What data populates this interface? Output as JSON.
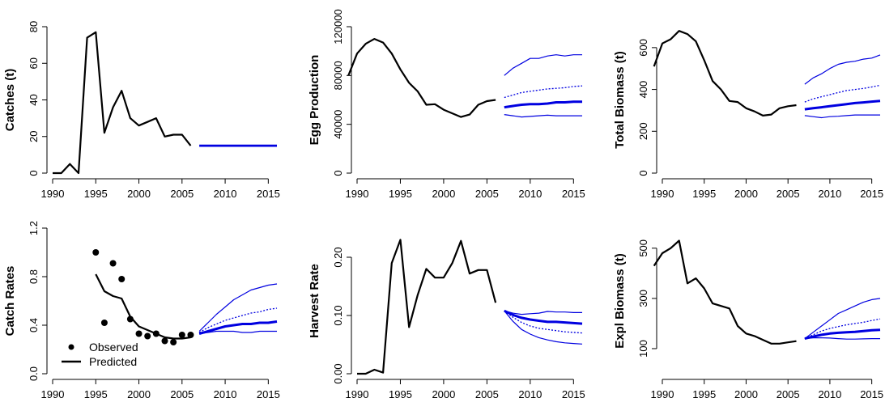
{
  "chart_data": [
    {
      "id": "catches",
      "type": "line",
      "ylabel": "Catches (t)",
      "xlim": [
        1990,
        2016
      ],
      "ylim": [
        0,
        80
      ],
      "xticks": [
        1990,
        1995,
        2000,
        2005,
        2010,
        2015
      ],
      "yticks": [
        0,
        20,
        40,
        60,
        80
      ],
      "series": [
        {
          "role": "historical",
          "color": "#000000",
          "x": [
            1990,
            1991,
            1992,
            1993,
            1994,
            1995,
            1996,
            1997,
            1998,
            1999,
            2000,
            2001,
            2002,
            2003,
            2004,
            2005,
            2006
          ],
          "y": [
            0,
            0,
            5,
            0,
            74,
            77,
            22,
            36,
            45,
            30,
            26,
            28,
            30,
            20,
            21,
            21,
            15
          ]
        },
        {
          "role": "projection",
          "color": "#0000e0",
          "x": [
            2007,
            2016
          ],
          "y": [
            15,
            15
          ]
        }
      ]
    },
    {
      "id": "egg",
      "type": "line",
      "ylabel": "Egg Production",
      "xlim": [
        1990,
        2016
      ],
      "ylim": [
        0,
        120000
      ],
      "xticks": [
        1990,
        1995,
        2000,
        2005,
        2010,
        2015
      ],
      "yticks": [
        0,
        40000,
        80000,
        120000
      ],
      "series": [
        {
          "role": "historical",
          "color": "#000000",
          "x": [
            1989,
            1990,
            1991,
            1992,
            1993,
            1994,
            1995,
            1996,
            1997,
            1998,
            1999,
            2000,
            2001,
            2002,
            2003,
            2004,
            2005,
            2006
          ],
          "y": [
            80000,
            98000,
            106000,
            110000,
            107000,
            98000,
            85000,
            74000,
            67000,
            56000,
            56500,
            52000,
            49000,
            46000,
            48000,
            56000,
            59000,
            60000
          ]
        },
        {
          "role": "upper",
          "color": "#0000e0",
          "x": [
            2007,
            2008,
            2009,
            2010,
            2011,
            2012,
            2013,
            2014,
            2015,
            2016
          ],
          "y": [
            80000,
            86000,
            90000,
            94000,
            94000,
            96000,
            97000,
            96000,
            97000,
            97000
          ]
        },
        {
          "role": "median",
          "color": "#0000e0",
          "dotted": true,
          "x": [
            2007,
            2008,
            2009,
            2010,
            2011,
            2012,
            2013,
            2014,
            2015,
            2016
          ],
          "y": [
            62000,
            64000,
            66000,
            67000,
            68000,
            69000,
            69500,
            70000,
            71000,
            71500
          ]
        },
        {
          "role": "mean",
          "color": "#0000e0",
          "thick": true,
          "x": [
            2007,
            2008,
            2009,
            2010,
            2011,
            2012,
            2013,
            2014,
            2015,
            2016
          ],
          "y": [
            54000,
            55000,
            56000,
            56500,
            56500,
            57000,
            58000,
            58000,
            58500,
            58500
          ]
        },
        {
          "role": "lower",
          "color": "#0000e0",
          "x": [
            2007,
            2008,
            2009,
            2010,
            2011,
            2012,
            2013,
            2014,
            2015,
            2016
          ],
          "y": [
            48000,
            47000,
            46000,
            46500,
            47000,
            47500,
            47000,
            47000,
            47000,
            47000
          ]
        }
      ]
    },
    {
      "id": "totbio",
      "type": "line",
      "ylabel": "Total Biomass (t)",
      "xlim": [
        1990,
        2016
      ],
      "ylim": [
        0,
        700
      ],
      "xticks": [
        1990,
        1995,
        2000,
        2005,
        2010,
        2015
      ],
      "yticks": [
        0,
        200,
        400,
        600
      ],
      "series": [
        {
          "role": "historical",
          "color": "#000000",
          "x": [
            1989,
            1990,
            1991,
            1992,
            1993,
            1994,
            1995,
            1996,
            1997,
            1998,
            1999,
            2000,
            2001,
            2002,
            2003,
            2004,
            2005,
            2006
          ],
          "y": [
            510,
            620,
            640,
            680,
            665,
            630,
            540,
            440,
            400,
            345,
            340,
            310,
            295,
            275,
            280,
            310,
            320,
            325
          ]
        },
        {
          "role": "upper",
          "color": "#0000e0",
          "x": [
            2007,
            2008,
            2009,
            2010,
            2011,
            2012,
            2013,
            2014,
            2015,
            2016
          ],
          "y": [
            425,
            455,
            475,
            500,
            520,
            530,
            535,
            545,
            550,
            565
          ]
        },
        {
          "role": "median",
          "color": "#0000e0",
          "dotted": true,
          "x": [
            2007,
            2008,
            2009,
            2010,
            2011,
            2012,
            2013,
            2014,
            2015,
            2016
          ],
          "y": [
            340,
            355,
            365,
            375,
            385,
            395,
            400,
            405,
            412,
            420
          ]
        },
        {
          "role": "mean",
          "color": "#0000e0",
          "thick": true,
          "x": [
            2007,
            2008,
            2009,
            2010,
            2011,
            2012,
            2013,
            2014,
            2015,
            2016
          ],
          "y": [
            305,
            310,
            315,
            320,
            325,
            330,
            335,
            338,
            342,
            345
          ]
        },
        {
          "role": "lower",
          "color": "#0000e0",
          "x": [
            2007,
            2008,
            2009,
            2010,
            2011,
            2012,
            2013,
            2014,
            2015,
            2016
          ],
          "y": [
            275,
            270,
            265,
            270,
            272,
            275,
            278,
            278,
            278,
            278
          ]
        }
      ]
    },
    {
      "id": "catchrates",
      "type": "line",
      "ylabel": "Catch Rates",
      "xlim": [
        1990,
        2016
      ],
      "ylim": [
        0,
        1.2
      ],
      "xticks": [
        1990,
        1995,
        2000,
        2005,
        2010,
        2015
      ],
      "yticks": [
        0.0,
        0.4,
        0.8,
        1.2
      ],
      "ytick_labels": [
        "0.0",
        "0.4",
        "0.8",
        "1.2"
      ],
      "legend": {
        "position": "bottom-left",
        "entries": [
          "Observed",
          "Predicted"
        ]
      },
      "observed": {
        "x": [
          1995,
          1996,
          1997,
          1998,
          1999,
          2000,
          2001,
          2002,
          2003,
          2004,
          2005,
          2006
        ],
        "y": [
          1.0,
          0.42,
          0.91,
          0.78,
          0.45,
          0.33,
          0.31,
          0.33,
          0.27,
          0.26,
          0.32,
          0.32
        ]
      },
      "series": [
        {
          "role": "predicted",
          "color": "#000000",
          "x": [
            1995,
            1996,
            1997,
            1998,
            1999,
            2000,
            2001,
            2002,
            2003,
            2004,
            2005,
            2006
          ],
          "y": [
            0.82,
            0.68,
            0.64,
            0.62,
            0.47,
            0.39,
            0.36,
            0.33,
            0.3,
            0.29,
            0.29,
            0.3
          ]
        },
        {
          "role": "upper",
          "color": "#0000e0",
          "x": [
            2007,
            2008,
            2009,
            2010,
            2011,
            2012,
            2013,
            2014,
            2015,
            2016
          ],
          "y": [
            0.35,
            0.42,
            0.49,
            0.55,
            0.61,
            0.65,
            0.69,
            0.71,
            0.73,
            0.74
          ]
        },
        {
          "role": "median",
          "color": "#0000e0",
          "dotted": true,
          "x": [
            2007,
            2008,
            2009,
            2010,
            2011,
            2012,
            2013,
            2014,
            2015,
            2016
          ],
          "y": [
            0.34,
            0.38,
            0.41,
            0.44,
            0.46,
            0.48,
            0.5,
            0.51,
            0.53,
            0.54
          ]
        },
        {
          "role": "mean",
          "color": "#0000e0",
          "thick": true,
          "x": [
            2007,
            2008,
            2009,
            2010,
            2011,
            2012,
            2013,
            2014,
            2015,
            2016
          ],
          "y": [
            0.33,
            0.35,
            0.37,
            0.39,
            0.4,
            0.41,
            0.41,
            0.42,
            0.42,
            0.43
          ]
        },
        {
          "role": "lower",
          "color": "#0000e0",
          "x": [
            2007,
            2008,
            2009,
            2010,
            2011,
            2012,
            2013,
            2014,
            2015,
            2016
          ],
          "y": [
            0.33,
            0.34,
            0.35,
            0.35,
            0.35,
            0.34,
            0.34,
            0.35,
            0.35,
            0.35
          ]
        }
      ]
    },
    {
      "id": "harvest",
      "type": "line",
      "ylabel": "Harvest Rate",
      "xlim": [
        1990,
        2016
      ],
      "ylim": [
        0,
        0.25
      ],
      "xticks": [
        1990,
        1995,
        2000,
        2005,
        2010,
        2015
      ],
      "yticks": [
        0.0,
        0.1,
        0.2
      ],
      "ytick_labels": [
        "0.00",
        "0.10",
        "0.20"
      ],
      "series": [
        {
          "role": "historical",
          "color": "#000000",
          "x": [
            1990,
            1991,
            1992,
            1993,
            1994,
            1995,
            1996,
            1997,
            1998,
            1999,
            2000,
            2001,
            2002,
            2003,
            2004,
            2005,
            2006
          ],
          "y": [
            0,
            0,
            0.007,
            0.002,
            0.19,
            0.23,
            0.08,
            0.135,
            0.18,
            0.165,
            0.165,
            0.19,
            0.228,
            0.172,
            0.178,
            0.178,
            0.122
          ]
        },
        {
          "role": "upper",
          "color": "#0000e0",
          "x": [
            2007,
            2008,
            2009,
            2010,
            2011,
            2012,
            2013,
            2014,
            2015,
            2016
          ],
          "y": [
            0.108,
            0.104,
            0.102,
            0.103,
            0.104,
            0.107,
            0.106,
            0.106,
            0.105,
            0.105
          ]
        },
        {
          "role": "median",
          "color": "#0000e0",
          "thick": true,
          "x": [
            2007,
            2008,
            2009,
            2010,
            2011,
            2012,
            2013,
            2014,
            2015,
            2016
          ],
          "y": [
            0.108,
            0.101,
            0.096,
            0.093,
            0.091,
            0.089,
            0.089,
            0.088,
            0.087,
            0.086
          ]
        },
        {
          "role": "mean",
          "color": "#0000e0",
          "dotted": true,
          "x": [
            2007,
            2008,
            2009,
            2010,
            2011,
            2012,
            2013,
            2014,
            2015,
            2016
          ],
          "y": [
            0.108,
            0.097,
            0.088,
            0.082,
            0.078,
            0.076,
            0.074,
            0.072,
            0.071,
            0.07
          ]
        },
        {
          "role": "lower",
          "color": "#0000e0",
          "x": [
            2007,
            2008,
            2009,
            2010,
            2011,
            2012,
            2013,
            2014,
            2015,
            2016
          ],
          "y": [
            0.108,
            0.09,
            0.076,
            0.068,
            0.062,
            0.058,
            0.055,
            0.053,
            0.052,
            0.051
          ]
        }
      ]
    },
    {
      "id": "explbio",
      "type": "line",
      "ylabel": "Expl Biomass (t)",
      "xlim": [
        1990,
        2016
      ],
      "ylim": [
        0,
        580
      ],
      "xticks": [
        1990,
        1995,
        2000,
        2005,
        2010,
        2015
      ],
      "yticks": [
        100,
        300,
        500
      ],
      "series": [
        {
          "role": "historical",
          "color": "#000000",
          "x": [
            1989,
            1990,
            1991,
            1992,
            1993,
            1994,
            1995,
            1996,
            1997,
            1998,
            1999,
            2000,
            2001,
            2002,
            2003,
            2004,
            2005,
            2006
          ],
          "y": [
            430,
            480,
            500,
            530,
            360,
            380,
            340,
            280,
            270,
            260,
            190,
            160,
            150,
            135,
            120,
            120,
            125,
            130
          ]
        },
        {
          "role": "upper",
          "color": "#0000e0",
          "x": [
            2007,
            2008,
            2009,
            2010,
            2011,
            2012,
            2013,
            2014,
            2015,
            2016
          ],
          "y": [
            140,
            165,
            190,
            215,
            240,
            255,
            270,
            285,
            295,
            300
          ]
        },
        {
          "role": "median",
          "color": "#0000e0",
          "dotted": true,
          "x": [
            2007,
            2008,
            2009,
            2010,
            2011,
            2012,
            2013,
            2014,
            2015,
            2016
          ],
          "y": [
            140,
            155,
            170,
            180,
            188,
            195,
            200,
            205,
            212,
            218
          ]
        },
        {
          "role": "mean",
          "color": "#0000e0",
          "thick": true,
          "x": [
            2007,
            2008,
            2009,
            2010,
            2011,
            2012,
            2013,
            2014,
            2015,
            2016
          ],
          "y": [
            140,
            148,
            155,
            160,
            163,
            165,
            167,
            170,
            173,
            175
          ]
        },
        {
          "role": "lower",
          "color": "#0000e0",
          "x": [
            2007,
            2008,
            2009,
            2010,
            2011,
            2012,
            2013,
            2014,
            2015,
            2016
          ],
          "y": [
            140,
            143,
            143,
            142,
            140,
            138,
            138,
            139,
            140,
            140
          ]
        }
      ]
    }
  ]
}
